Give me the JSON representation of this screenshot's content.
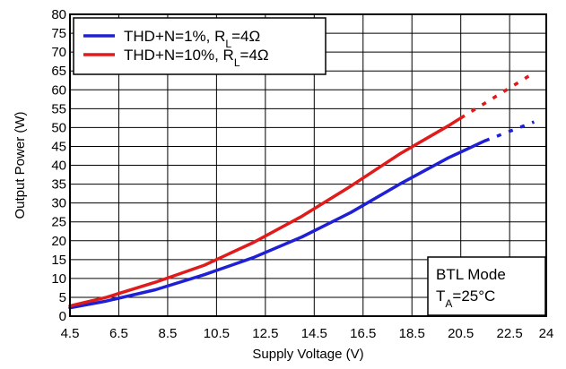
{
  "chart_data": {
    "type": "line",
    "title": "",
    "xlabel": "Supply Voltage (V)",
    "ylabel": "Output Power (W)",
    "xlim": [
      4.5,
      24
    ],
    "ylim": [
      0,
      80
    ],
    "x_ticks": [
      4.5,
      6.5,
      8.5,
      10.5,
      12.5,
      14.5,
      16.5,
      18.5,
      20.5,
      22.5,
      24
    ],
    "x_tick_labels": [
      "4.5",
      "6.5",
      "8.5",
      "10.5",
      "12.5",
      "14.5",
      "16.5",
      "18.5",
      "20.5",
      "22.5",
      "24"
    ],
    "y_ticks": [
      0,
      5,
      10,
      15,
      20,
      25,
      30,
      35,
      40,
      45,
      50,
      55,
      60,
      65,
      70,
      75,
      80
    ],
    "y_tick_labels": [
      "0",
      "5",
      "10",
      "15",
      "20",
      "25",
      "30",
      "35",
      "40",
      "45",
      "50",
      "55",
      "60",
      "65",
      "70",
      "75",
      "80"
    ],
    "grid": true,
    "legend_placement": "top-left",
    "series": [
      {
        "name": "THD+N=1%, RL=4Ω",
        "legend_main": "THD+N=1%, R",
        "legend_sub": "L",
        "legend_tail": "=4Ω",
        "color": "#1f1fd6",
        "x": [
          4.5,
          6,
          8,
          10,
          12,
          14,
          16,
          18,
          20,
          21.5
        ],
        "y": [
          2.2,
          4,
          7,
          11,
          15.5,
          21,
          27.5,
          35,
          42,
          46.5
        ],
        "extrapolated": {
          "x": [
            21.5,
            22.5,
            23.5
          ],
          "y": [
            46.5,
            49,
            51.5
          ]
        }
      },
      {
        "name": "THD+N=10%, RL=4Ω",
        "legend_main": "THD+N=10%, R",
        "legend_sub": "L",
        "legend_tail": "=4Ω",
        "color": "#e01b1b",
        "x": [
          4.5,
          6,
          8,
          10,
          12,
          14,
          16,
          18,
          20,
          20.5
        ],
        "y": [
          2.7,
          5,
          9,
          13.5,
          19.5,
          26.5,
          34.5,
          43,
          50.5,
          52.5
        ],
        "extrapolated": {
          "x": [
            20.5,
            22,
            23.5
          ],
          "y": [
            52.5,
            58.5,
            64.5
          ]
        }
      }
    ],
    "annotations": {
      "mode_label": "BTL Mode",
      "temp_main": "T",
      "temp_sub": "A",
      "temp_tail": "=25°C"
    }
  }
}
